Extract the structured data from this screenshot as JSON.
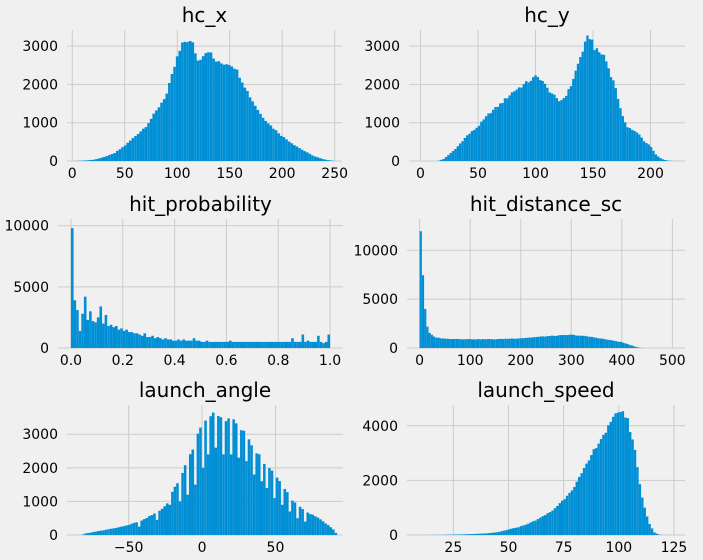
{
  "style": {
    "background": "#f0f0f0",
    "grid": "#cbcbcb",
    "bar": "#008fd5"
  },
  "chart_data": [
    {
      "type": "bar",
      "title": "hc_x",
      "xlabel": "",
      "ylabel": "",
      "xlim": [
        -5,
        257
      ],
      "ylim": [
        0,
        3420
      ],
      "xticks": [
        "0",
        "50",
        "100",
        "150",
        "200",
        "250"
      ],
      "yticks": [
        "0",
        "1000",
        "2000",
        "3000"
      ],
      "grid": true,
      "profile": [
        [
          2,
          0
        ],
        [
          10,
          10
        ],
        [
          20,
          30
        ],
        [
          30,
          100
        ],
        [
          40,
          200
        ],
        [
          50,
          400
        ],
        [
          60,
          650
        ],
        [
          70,
          900
        ],
        [
          80,
          1300
        ],
        [
          90,
          1750
        ],
        [
          100,
          2700
        ],
        [
          106,
          3100
        ],
        [
          110,
          3150
        ],
        [
          115,
          3050
        ],
        [
          120,
          2600
        ],
        [
          125,
          2800
        ],
        [
          130,
          2900
        ],
        [
          135,
          2650
        ],
        [
          140,
          2550
        ],
        [
          150,
          2550
        ],
        [
          155,
          2450
        ],
        [
          160,
          2200
        ],
        [
          170,
          1650
        ],
        [
          180,
          1200
        ],
        [
          190,
          900
        ],
        [
          200,
          650
        ],
        [
          210,
          450
        ],
        [
          220,
          280
        ],
        [
          230,
          130
        ],
        [
          240,
          40
        ],
        [
          250,
          0
        ]
      ]
    },
    {
      "type": "bar",
      "title": "hc_y",
      "xlabel": "",
      "ylabel": "",
      "xlim": [
        -10,
        230
      ],
      "ylim": [
        0,
        3420
      ],
      "xticks": [
        "0",
        "50",
        "100",
        "150",
        "200"
      ],
      "yticks": [
        "0",
        "1000",
        "2000",
        "3000"
      ],
      "grid": true,
      "profile": [
        [
          15,
          0
        ],
        [
          20,
          50
        ],
        [
          30,
          300
        ],
        [
          40,
          650
        ],
        [
          50,
          900
        ],
        [
          60,
          1250
        ],
        [
          70,
          1500
        ],
        [
          80,
          1800
        ],
        [
          90,
          2000
        ],
        [
          100,
          2200
        ],
        [
          105,
          2150
        ],
        [
          110,
          1900
        ],
        [
          115,
          1750
        ],
        [
          120,
          1550
        ],
        [
          125,
          1650
        ],
        [
          130,
          1900
        ],
        [
          135,
          2350
        ],
        [
          140,
          2800
        ],
        [
          145,
          3200
        ],
        [
          148,
          3250
        ],
        [
          152,
          2900
        ],
        [
          160,
          2750
        ],
        [
          165,
          2300
        ],
        [
          170,
          1900
        ],
        [
          175,
          1200
        ],
        [
          180,
          900
        ],
        [
          185,
          800
        ],
        [
          190,
          700
        ],
        [
          195,
          500
        ],
        [
          200,
          400
        ],
        [
          205,
          150
        ],
        [
          210,
          50
        ],
        [
          215,
          10
        ],
        [
          220,
          0
        ]
      ]
    },
    {
      "type": "bar",
      "title": "hit_probability",
      "xlabel": "",
      "ylabel": "",
      "xlim": [
        -0.05,
        1.05
      ],
      "ylim": [
        0,
        10550
      ],
      "xticks": [
        "0.0",
        "0.2",
        "0.4",
        "0.6",
        "0.8",
        "1.0"
      ],
      "yticks": [
        "0",
        "5000",
        "10000"
      ],
      "grid": true,
      "values": [
        9800,
        3900,
        3100,
        1400,
        2800,
        4200,
        2300,
        3000,
        2200,
        2100,
        2500,
        3400,
        2000,
        2700,
        1800,
        1900,
        1700,
        1800,
        1500,
        1600,
        1400,
        1500,
        1300,
        1300,
        1200,
        1200,
        1100,
        1000,
        1200,
        900,
        900,
        1000,
        800,
        900,
        800,
        700,
        800,
        700,
        700,
        600,
        600,
        700,
        600,
        700,
        600,
        600,
        600,
        800,
        600,
        600,
        500,
        500,
        600,
        500,
        500,
        500,
        500,
        500,
        500,
        500,
        500,
        600,
        500,
        500,
        500,
        500,
        500,
        500,
        500,
        500,
        500,
        500,
        500,
        500,
        500,
        500,
        500,
        500,
        500,
        500,
        500,
        500,
        500,
        500,
        500,
        800,
        500,
        500,
        500,
        1100,
        500,
        600,
        500,
        500,
        500,
        1000,
        500,
        400,
        500,
        1100
      ]
    },
    {
      "type": "bar",
      "title": "hit_distance_sc",
      "xlabel": "",
      "ylabel": "",
      "xlim": [
        -25,
        525
      ],
      "ylim": [
        0,
        13200
      ],
      "xticks": [
        "0",
        "100",
        "200",
        "300",
        "400",
        "500"
      ],
      "yticks": [
        "0",
        "5000",
        "10000"
      ],
      "grid": true,
      "profile": [
        [
          0,
          0
        ],
        [
          2,
          12300
        ],
        [
          6,
          8000
        ],
        [
          10,
          4500
        ],
        [
          15,
          2200
        ],
        [
          20,
          1500
        ],
        [
          30,
          1100
        ],
        [
          50,
          950
        ],
        [
          100,
          900
        ],
        [
          150,
          900
        ],
        [
          200,
          1000
        ],
        [
          250,
          1200
        ],
        [
          300,
          1350
        ],
        [
          330,
          1200
        ],
        [
          350,
          1050
        ],
        [
          400,
          600
        ],
        [
          420,
          250
        ],
        [
          430,
          80
        ],
        [
          440,
          0
        ]
      ]
    },
    {
      "type": "bar",
      "title": "launch_angle",
      "xlabel": "",
      "ylabel": "",
      "xlim": [
        -92,
        96
      ],
      "ylim": [
        0,
        3870
      ],
      "xticks": [
        "−50",
        "0",
        "50"
      ],
      "yticks": [
        "0",
        "1000",
        "2000",
        "3000"
      ],
      "grid": true,
      "profile": [
        [
          -82,
          0
        ],
        [
          -80,
          40
        ],
        [
          -70,
          120
        ],
        [
          -60,
          200
        ],
        [
          -50,
          300
        ],
        [
          -40,
          450
        ],
        [
          -30,
          700
        ],
        [
          -25,
          850
        ],
        [
          -20,
          1300
        ],
        [
          -15,
          1700
        ],
        [
          -10,
          2200
        ],
        [
          -5,
          2700
        ],
        [
          0,
          3300
        ],
        [
          5,
          3600
        ],
        [
          10,
          3600
        ],
        [
          15,
          3500
        ],
        [
          20,
          3400
        ],
        [
          25,
          3300
        ],
        [
          30,
          3000
        ],
        [
          35,
          2600
        ],
        [
          40,
          2300
        ],
        [
          45,
          2000
        ],
        [
          50,
          1800
        ],
        [
          55,
          1500
        ],
        [
          60,
          1100
        ],
        [
          70,
          700
        ],
        [
          80,
          500
        ],
        [
          90,
          150
        ],
        [
          92,
          0
        ]
      ],
      "dips": [
        [
          -42,
          250
        ],
        [
          -30,
          450
        ],
        [
          -22,
          900
        ],
        [
          -15,
          1000
        ],
        [
          -10,
          1200
        ],
        [
          -5,
          1500
        ],
        [
          0,
          2000
        ],
        [
          5,
          2400
        ],
        [
          10,
          2600
        ],
        [
          15,
          2400
        ],
        [
          20,
          2400
        ],
        [
          25,
          2300
        ],
        [
          30,
          2200
        ],
        [
          35,
          1800
        ],
        [
          40,
          1600
        ],
        [
          45,
          1400
        ],
        [
          50,
          1100
        ],
        [
          55,
          900
        ],
        [
          60,
          700
        ],
        [
          65,
          500
        ],
        [
          70,
          400
        ]
      ]
    },
    {
      "type": "bar",
      "title": "launch_speed",
      "xlabel": "",
      "ylabel": "",
      "xlim": [
        4,
        130
      ],
      "ylim": [
        0,
        4760
      ],
      "xticks": [
        "25",
        "50",
        "75",
        "100",
        "125"
      ],
      "yticks": [
        "0",
        "2000",
        "4000"
      ],
      "grid": true,
      "profile": [
        [
          10,
          0
        ],
        [
          20,
          5
        ],
        [
          25,
          15
        ],
        [
          30,
          25
        ],
        [
          35,
          40
        ],
        [
          40,
          60
        ],
        [
          45,
          100
        ],
        [
          50,
          200
        ],
        [
          55,
          300
        ],
        [
          60,
          450
        ],
        [
          65,
          650
        ],
        [
          70,
          900
        ],
        [
          75,
          1300
        ],
        [
          80,
          1800
        ],
        [
          85,
          2500
        ],
        [
          90,
          3300
        ],
        [
          95,
          3900
        ],
        [
          98,
          4300
        ],
        [
          100,
          4600
        ],
        [
          102,
          4500
        ],
        [
          104,
          4200
        ],
        [
          106,
          3600
        ],
        [
          108,
          2800
        ],
        [
          110,
          1600
        ],
        [
          112,
          900
        ],
        [
          114,
          400
        ],
        [
          116,
          100
        ],
        [
          118,
          20
        ],
        [
          120,
          0
        ]
      ]
    }
  ]
}
